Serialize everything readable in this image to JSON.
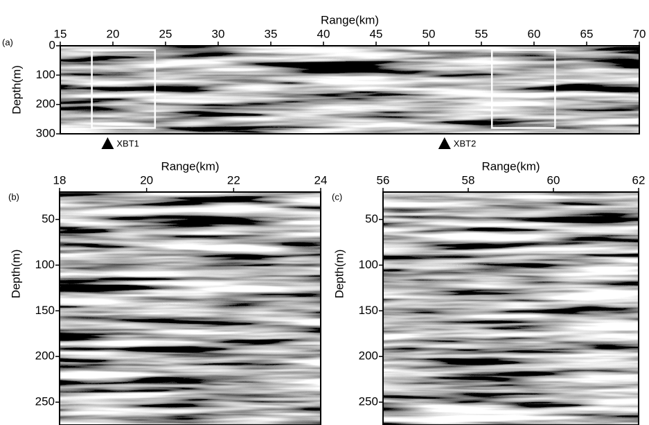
{
  "chart_data": [
    {
      "type": "seismic",
      "panel": "(a)",
      "xlabel": "Range(km)",
      "ylabel": "Depth(m)",
      "xlim": [
        15,
        70
      ],
      "xticks": [
        15,
        20,
        25,
        30,
        35,
        40,
        45,
        50,
        55,
        60,
        65,
        70
      ],
      "ylim": [
        0,
        300
      ],
      "yticks": [
        0,
        100,
        200,
        300
      ],
      "boxes": [
        {
          "x": [
            18,
            24
          ],
          "y": [
            15,
            280
          ]
        },
        {
          "x": [
            56,
            62
          ],
          "y": [
            15,
            280
          ]
        }
      ],
      "markers": [
        {
          "label": "XBT1",
          "x": 19.5
        },
        {
          "label": "XBT2",
          "x": 51.5
        }
      ]
    },
    {
      "type": "seismic",
      "panel": "(b)",
      "xlabel": "Range(km)",
      "ylabel": "Depth(m)",
      "xlim": [
        18,
        24
      ],
      "xticks": [
        18,
        20,
        22,
        24
      ],
      "ylim": [
        20,
        275
      ],
      "yticks": [
        50,
        100,
        150,
        200,
        250
      ]
    },
    {
      "type": "seismic",
      "panel": "(c)",
      "xlabel": "Range(km)",
      "ylabel": "Depth(m)",
      "xlim": [
        56,
        62
      ],
      "xticks": [
        56,
        58,
        60,
        62
      ],
      "ylim": [
        20,
        275
      ],
      "yticks": [
        50,
        100,
        150,
        200,
        250
      ]
    }
  ]
}
